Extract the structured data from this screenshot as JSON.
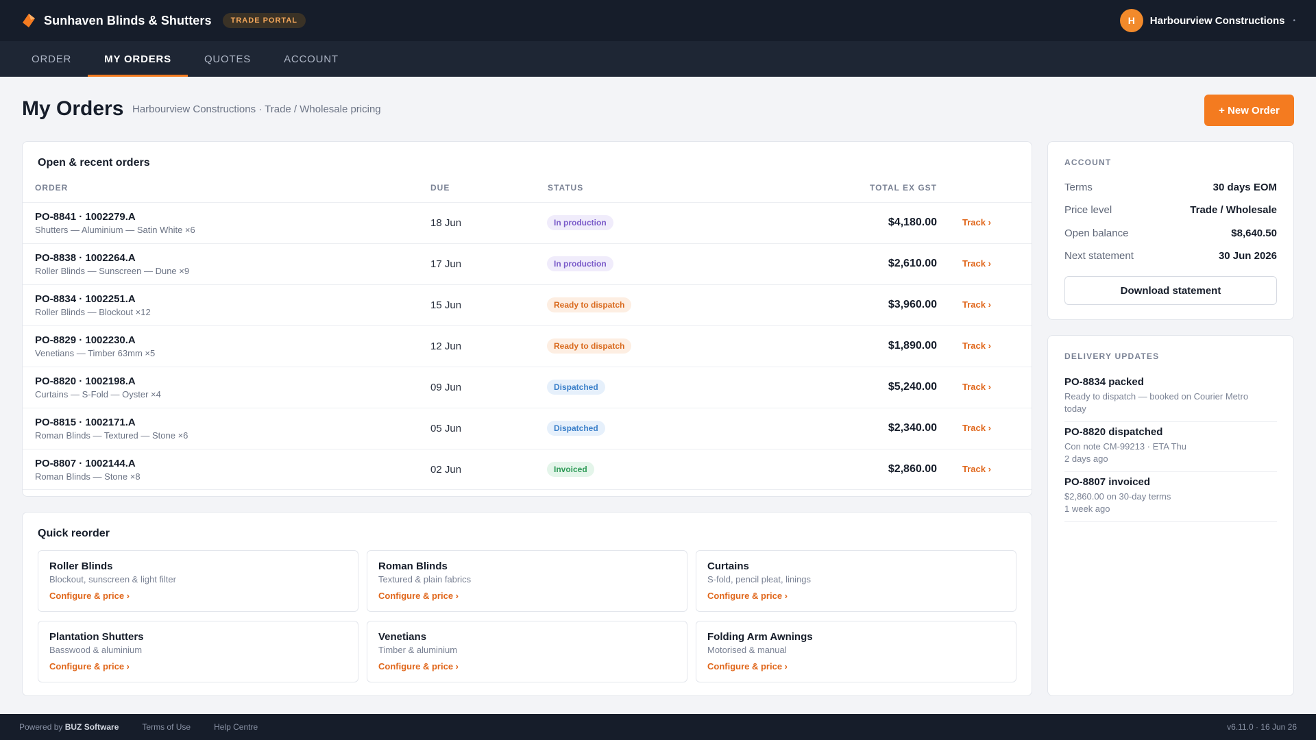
{
  "header": {
    "brand": "Sunhaven Blinds & Shutters",
    "portal_badge": "TRADE PORTAL",
    "avatar_initial": "H",
    "user_name": "Harbourview Constructions",
    "accent_color": "#f47b20"
  },
  "nav": {
    "tabs": [
      {
        "label": "ORDER"
      },
      {
        "label": "MY ORDERS",
        "active": true
      },
      {
        "label": "QUOTES"
      },
      {
        "label": "ACCOUNT"
      }
    ]
  },
  "page": {
    "title": "My Orders",
    "subtitle": "Harbourview Constructions · Trade / Wholesale pricing",
    "new_order_label": "+ New Order"
  },
  "orders": {
    "title": "Open & recent orders",
    "columns": {
      "order": "ORDER",
      "due": "DUE",
      "status": "STATUS",
      "total": "TOTAL EX GST"
    },
    "track_label": "Track ›",
    "rows": [
      {
        "id": "PO-8841 · 1002279.A",
        "desc": "Shutters — Aluminium — Satin White ×6",
        "due": "18 Jun",
        "status": "In production",
        "status_kind": "prod",
        "total": "$4,180.00"
      },
      {
        "id": "PO-8838 · 1002264.A",
        "desc": "Roller Blinds — Sunscreen — Dune ×9",
        "due": "17 Jun",
        "status": "In production",
        "status_kind": "prod",
        "total": "$2,610.00"
      },
      {
        "id": "PO-8834 · 1002251.A",
        "desc": "Roller Blinds — Blockout ×12",
        "due": "15 Jun",
        "status": "Ready to dispatch",
        "status_kind": "ready",
        "total": "$3,960.00"
      },
      {
        "id": "PO-8829 · 1002230.A",
        "desc": "Venetians — Timber 63mm ×5",
        "due": "12 Jun",
        "status": "Ready to dispatch",
        "status_kind": "ready",
        "total": "$1,890.00"
      },
      {
        "id": "PO-8820 · 1002198.A",
        "desc": "Curtains — S-Fold — Oyster ×4",
        "due": "09 Jun",
        "status": "Dispatched",
        "status_kind": "disp",
        "total": "$5,240.00"
      },
      {
        "id": "PO-8815 · 1002171.A",
        "desc": "Roman Blinds — Textured — Stone ×6",
        "due": "05 Jun",
        "status": "Dispatched",
        "status_kind": "disp",
        "total": "$2,340.00"
      },
      {
        "id": "PO-8807 · 1002144.A",
        "desc": "Roman Blinds — Stone ×8",
        "due": "02 Jun",
        "status": "Invoiced",
        "status_kind": "inv",
        "total": "$2,860.00"
      }
    ]
  },
  "reorder": {
    "title": "Quick reorder",
    "link_label": "Configure & price ›",
    "tiles": [
      {
        "name": "Roller Blinds",
        "desc": "Blockout, sunscreen & light filter"
      },
      {
        "name": "Roman Blinds",
        "desc": "Textured & plain fabrics"
      },
      {
        "name": "Curtains",
        "desc": "S-fold, pencil pleat, linings"
      },
      {
        "name": "Plantation Shutters",
        "desc": "Basswood & aluminium"
      },
      {
        "name": "Venetians",
        "desc": "Timber & aluminium"
      },
      {
        "name": "Folding Arm Awnings",
        "desc": "Motorised & manual"
      }
    ]
  },
  "account": {
    "label": "ACCOUNT",
    "items": [
      {
        "key": "Terms",
        "value": "30 days EOM"
      },
      {
        "key": "Price level",
        "value": "Trade / Wholesale"
      },
      {
        "key": "Open balance",
        "value": "$8,640.50"
      },
      {
        "key": "Next statement",
        "value": "30 Jun 2026"
      }
    ],
    "download_label": "Download statement"
  },
  "delivery": {
    "label": "DELIVERY UPDATES",
    "items": [
      {
        "title": "PO-8834 packed",
        "desc": "Ready to dispatch — booked on Courier Metro",
        "time": "today"
      },
      {
        "title": "PO-8820 dispatched",
        "desc": "Con note CM-99213 · ETA Thu",
        "time": "2 days ago"
      },
      {
        "title": "PO-8807 invoiced",
        "desc": "$2,860.00 on 30-day terms",
        "time": "1 week ago"
      }
    ]
  },
  "footer": {
    "powered_prefix": "Powered by",
    "powered_brand": "BUZ Software",
    "terms": "Terms of Use",
    "help": "Help Centre",
    "version": "v6.11.0 · 16 Jun 26"
  }
}
